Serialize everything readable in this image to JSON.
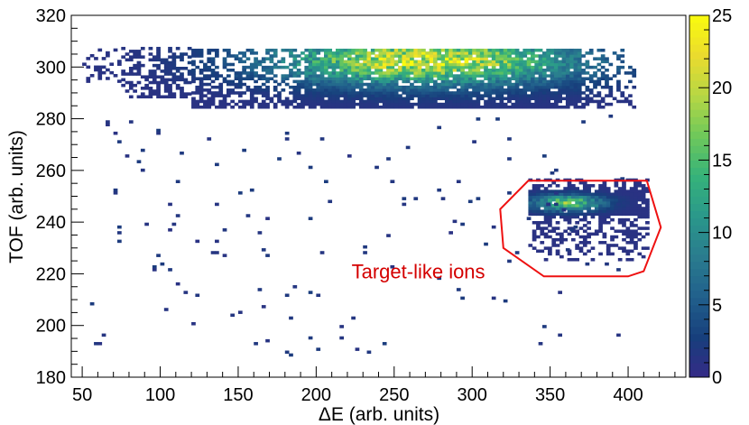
{
  "chart_data": {
    "type": "heatmap",
    "xlabel": "ΔE (arb. units)",
    "ylabel": "TOF (arb. units)",
    "xlim": [
      43,
      437
    ],
    "ylim": [
      180,
      320
    ],
    "x_ticks": [
      50,
      100,
      150,
      200,
      250,
      300,
      350,
      400
    ],
    "y_ticks": [
      180,
      200,
      220,
      240,
      260,
      280,
      300,
      320
    ],
    "bin_width_x": 2.5,
    "bin_width_y": 1.1,
    "colorbar": {
      "range": [
        0,
        25
      ],
      "ticks": [
        0,
        5,
        10,
        15,
        20,
        25
      ],
      "palette": [
        "#352a87",
        "#173f7c",
        "#21608c",
        "#2a7c8e",
        "#2a988b",
        "#36b27a",
        "#6ec85b",
        "#b6d744",
        "#eadb2e",
        "#f9fb0e"
      ]
    },
    "grid": false,
    "legend": "none",
    "clusters": [
      {
        "x_range": [
          50,
          404
        ],
        "y_range": [
          284,
          307
        ],
        "peak_counts": 25,
        "peak_x": 270,
        "peak_y": 302
      },
      {
        "x_range": [
          336,
          412
        ],
        "y_range": [
          225,
          256
        ],
        "peak_counts": 20,
        "peak_x": 360,
        "peak_y": 247
      }
    ],
    "annotations": [
      {
        "text": "Target-like ions",
        "color": "#d40000",
        "anchor_data": [
          225,
          219
        ]
      }
    ],
    "polygon": {
      "color": "#ee1111",
      "points": [
        [
          336,
          256
        ],
        [
          412,
          256
        ],
        [
          421,
          238
        ],
        [
          410,
          221
        ],
        [
          400,
          219
        ],
        [
          346,
          219
        ],
        [
          320,
          230
        ],
        [
          318,
          245
        ]
      ]
    }
  }
}
